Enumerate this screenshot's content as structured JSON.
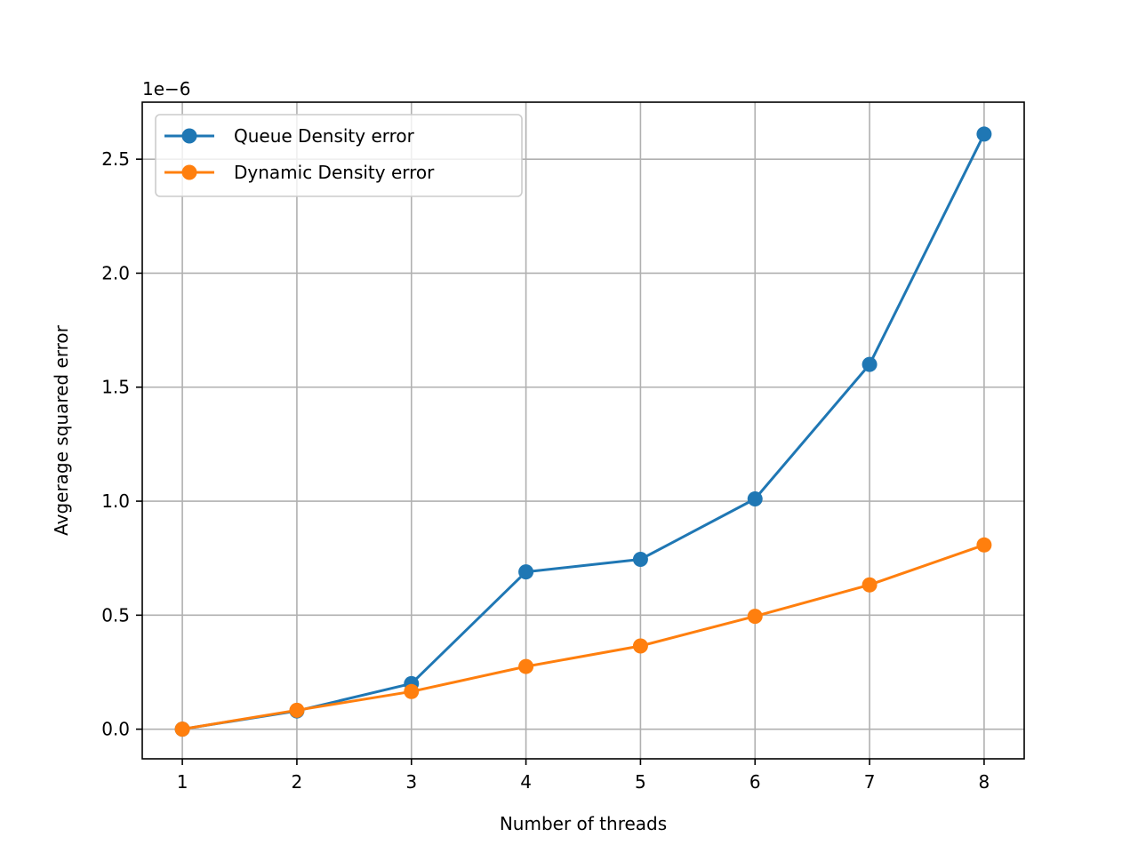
{
  "chart_data": {
    "type": "line",
    "x": [
      1,
      2,
      3,
      4,
      5,
      6,
      7,
      8
    ],
    "series": [
      {
        "name": "Queue Density error",
        "color": "#1f77b4",
        "marker": "circle",
        "values": [
          0.0,
          8e-08,
          2e-07,
          6.9e-07,
          7.45e-07,
          1.01e-06,
          1.6e-06,
          2.61e-06
        ]
      },
      {
        "name": "Dynamic Density error",
        "color": "#ff7f0e",
        "marker": "circle",
        "values": [
          0.0,
          8.3e-08,
          1.65e-07,
          2.75e-07,
          3.65e-07,
          4.95e-07,
          6.33e-07,
          8.08e-07
        ]
      }
    ],
    "xlabel": "Number of threads",
    "ylabel": "Avgerage squared error",
    "y_offset_label": "1e−6",
    "x_ticks": [
      1,
      2,
      3,
      4,
      5,
      6,
      7,
      8
    ],
    "x_tick_labels": [
      "1",
      "2",
      "3",
      "4",
      "5",
      "6",
      "7",
      "8"
    ],
    "y_ticks": [
      0,
      5e-07,
      1e-06,
      1.5e-06,
      2e-06,
      2.5e-06
    ],
    "y_tick_labels": [
      "0.0",
      "0.5",
      "1.0",
      "1.5",
      "2.0",
      "2.5"
    ],
    "xlim": [
      0.65,
      8.35
    ],
    "ylim": [
      -1.3e-07,
      2.75e-06
    ],
    "grid": true,
    "legend_position": "top-left",
    "grid_color": "#b0b0b0"
  }
}
